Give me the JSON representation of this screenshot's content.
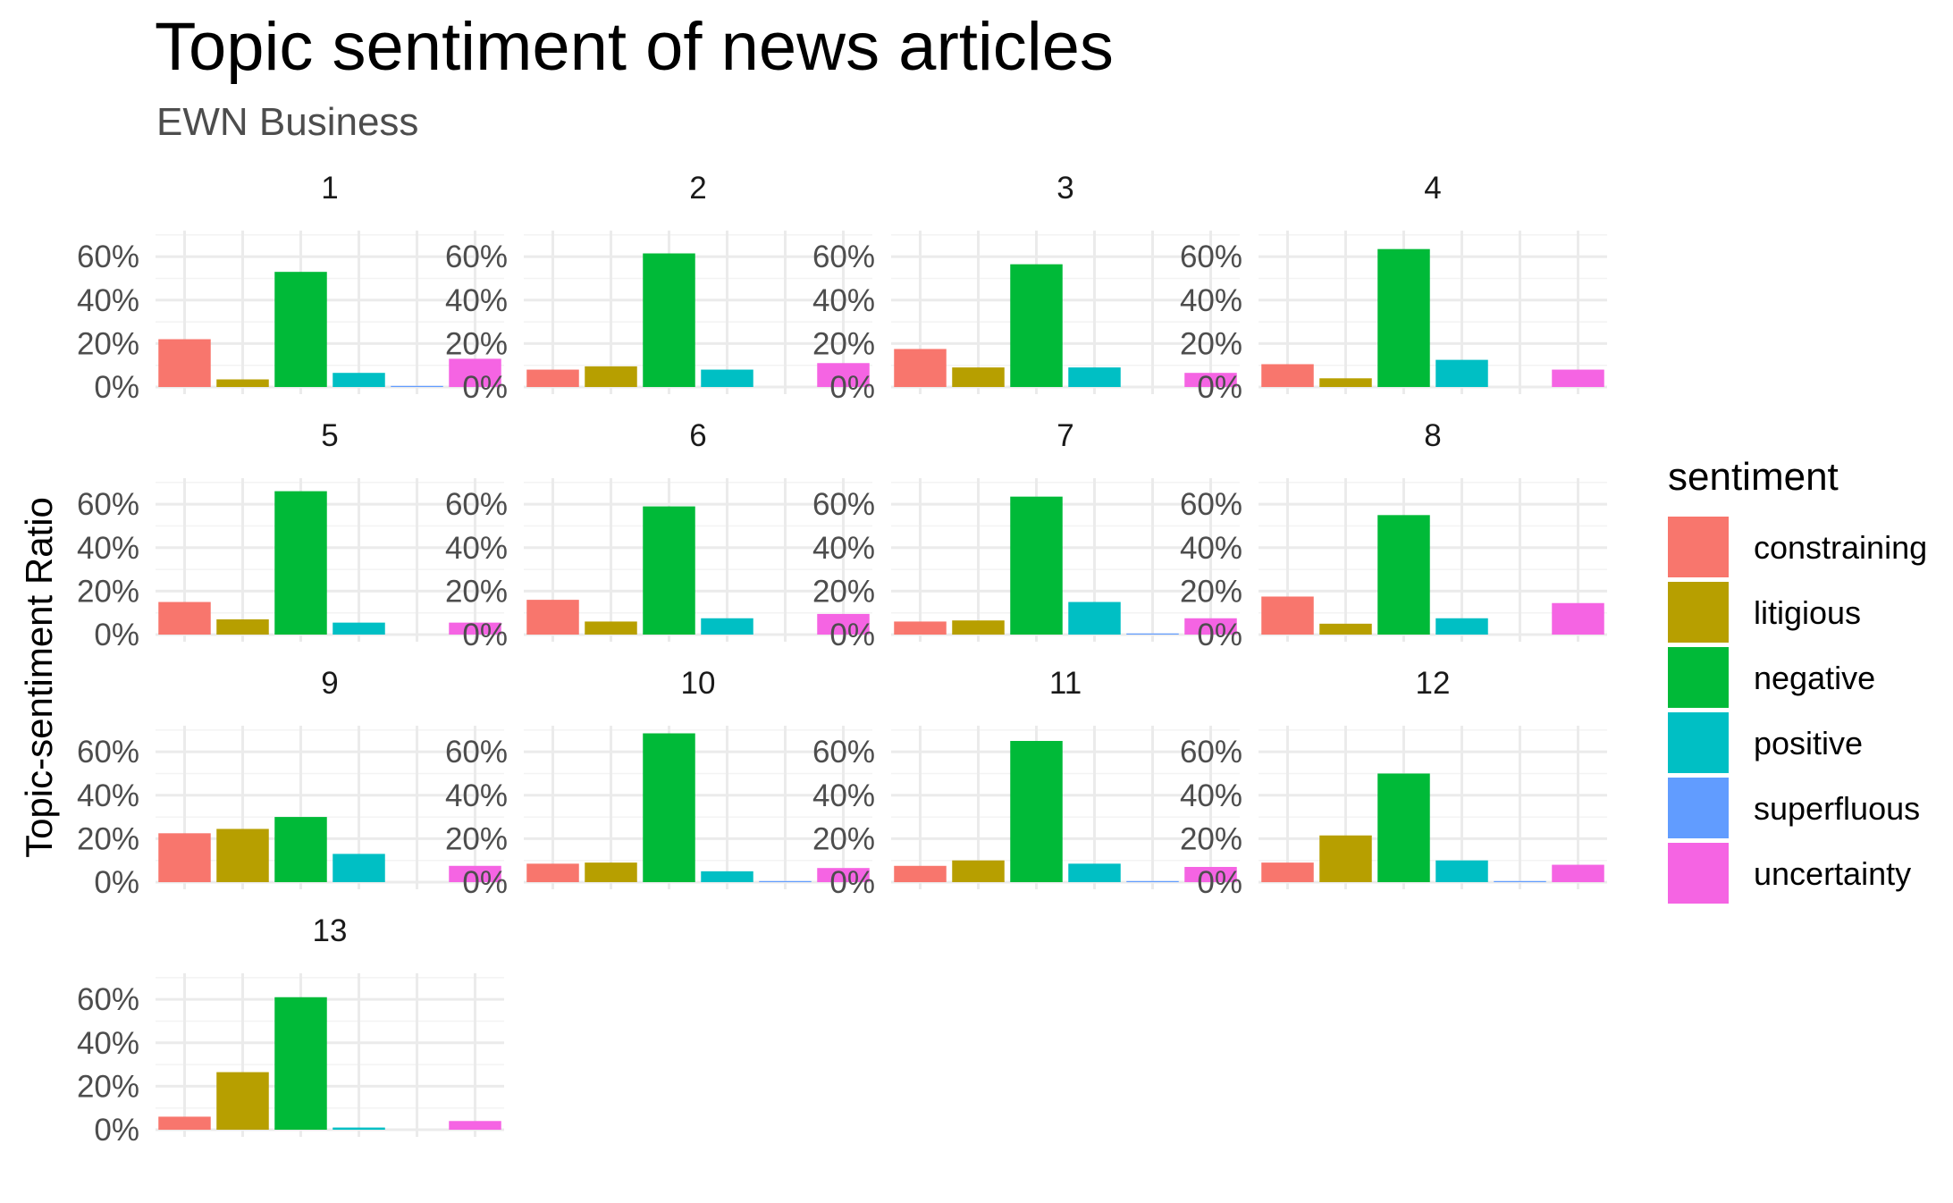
{
  "chart_data": {
    "type": "bar",
    "title": "Topic sentiment of news articles",
    "subtitle": "EWN Business",
    "ylabel": "Topic-sentiment Ratio",
    "xlabel": "",
    "categories": [
      "constraining",
      "litigious",
      "negative",
      "positive",
      "superfluous",
      "uncertainty"
    ],
    "ylim": [
      0,
      0.72
    ],
    "yticks": [
      0,
      0.2,
      0.4,
      0.6
    ],
    "ytick_labels": [
      "0%",
      "20%",
      "40%",
      "60%"
    ],
    "grid": true,
    "legend": {
      "title": "sentiment",
      "position": "right",
      "entries": [
        "constraining",
        "litigious",
        "negative",
        "positive",
        "superfluous",
        "uncertainty"
      ]
    },
    "colors": {
      "constraining": "#F8766D",
      "litigious": "#B79F00",
      "negative": "#00BA38",
      "positive": "#00BFC4",
      "superfluous": "#619CFF",
      "uncertainty": "#F564E3"
    },
    "facets": [
      {
        "label": "1",
        "values": [
          0.22,
          0.035,
          0.53,
          0.065,
          0.005,
          0.13
        ]
      },
      {
        "label": "2",
        "values": [
          0.08,
          0.095,
          0.615,
          0.08,
          0.0,
          0.11
        ]
      },
      {
        "label": "3",
        "values": [
          0.175,
          0.09,
          0.565,
          0.09,
          0.0,
          0.065
        ]
      },
      {
        "label": "4",
        "values": [
          0.105,
          0.04,
          0.635,
          0.125,
          0.0,
          0.08
        ]
      },
      {
        "label": "5",
        "values": [
          0.15,
          0.07,
          0.66,
          0.055,
          0.0,
          0.055
        ]
      },
      {
        "label": "6",
        "values": [
          0.16,
          0.06,
          0.59,
          0.075,
          0.0,
          0.095
        ]
      },
      {
        "label": "7",
        "values": [
          0.06,
          0.065,
          0.635,
          0.15,
          0.005,
          0.075
        ]
      },
      {
        "label": "8",
        "values": [
          0.175,
          0.05,
          0.55,
          0.075,
          0.0,
          0.145
        ]
      },
      {
        "label": "9",
        "values": [
          0.225,
          0.245,
          0.3,
          0.13,
          0.0,
          0.075
        ]
      },
      {
        "label": "10",
        "values": [
          0.085,
          0.09,
          0.685,
          0.05,
          0.005,
          0.065
        ]
      },
      {
        "label": "11",
        "values": [
          0.075,
          0.1,
          0.65,
          0.085,
          0.005,
          0.07
        ]
      },
      {
        "label": "12",
        "values": [
          0.09,
          0.215,
          0.5,
          0.1,
          0.005,
          0.08
        ]
      },
      {
        "label": "13",
        "values": [
          0.06,
          0.265,
          0.61,
          0.01,
          0.0,
          0.04
        ]
      }
    ]
  }
}
